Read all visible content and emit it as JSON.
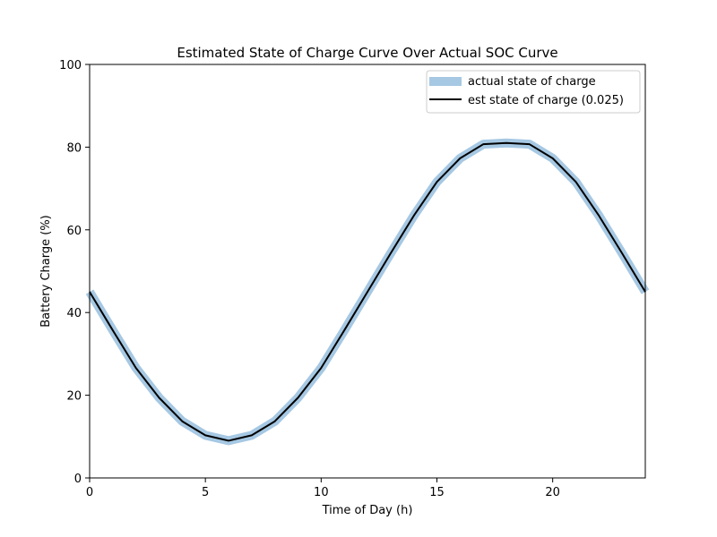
{
  "chart_data": {
    "type": "line",
    "title": "Estimated State of Charge Curve Over Actual SOC Curve",
    "xlabel": "Time of Day (h)",
    "ylabel": "Battery Charge (%)",
    "xlim": [
      0,
      24
    ],
    "ylim": [
      0,
      100
    ],
    "x_ticks": [
      0,
      5,
      10,
      15,
      20
    ],
    "y_ticks": [
      0,
      20,
      40,
      60,
      80,
      100
    ],
    "grid": false,
    "legend_position": "top-right",
    "x": [
      0,
      1,
      2,
      3,
      4,
      5,
      6,
      7,
      8,
      9,
      10,
      11,
      12,
      13,
      14,
      15,
      16,
      17,
      18,
      19,
      20,
      21,
      22,
      23,
      24
    ],
    "series": [
      {
        "name": "actual state of charge",
        "color": "#a6c8e3",
        "style": "thick",
        "values": [
          45.0,
          35.7,
          26.6,
          19.4,
          13.7,
          10.3,
          9.0,
          10.3,
          13.7,
          19.4,
          26.6,
          35.7,
          45.0,
          54.3,
          63.4,
          71.6,
          77.3,
          80.7,
          81.0,
          80.7,
          77.3,
          71.6,
          63.4,
          54.3,
          45.0
        ]
      },
      {
        "name": "est state of charge (0.025)",
        "color": "#000000",
        "style": "thin",
        "values": [
          45.0,
          35.7,
          26.6,
          19.4,
          13.7,
          10.3,
          9.0,
          10.3,
          13.7,
          19.4,
          26.6,
          35.7,
          45.0,
          54.3,
          63.4,
          71.6,
          77.3,
          80.7,
          81.0,
          80.7,
          77.3,
          71.6,
          63.4,
          54.3,
          45.0
        ]
      }
    ]
  }
}
